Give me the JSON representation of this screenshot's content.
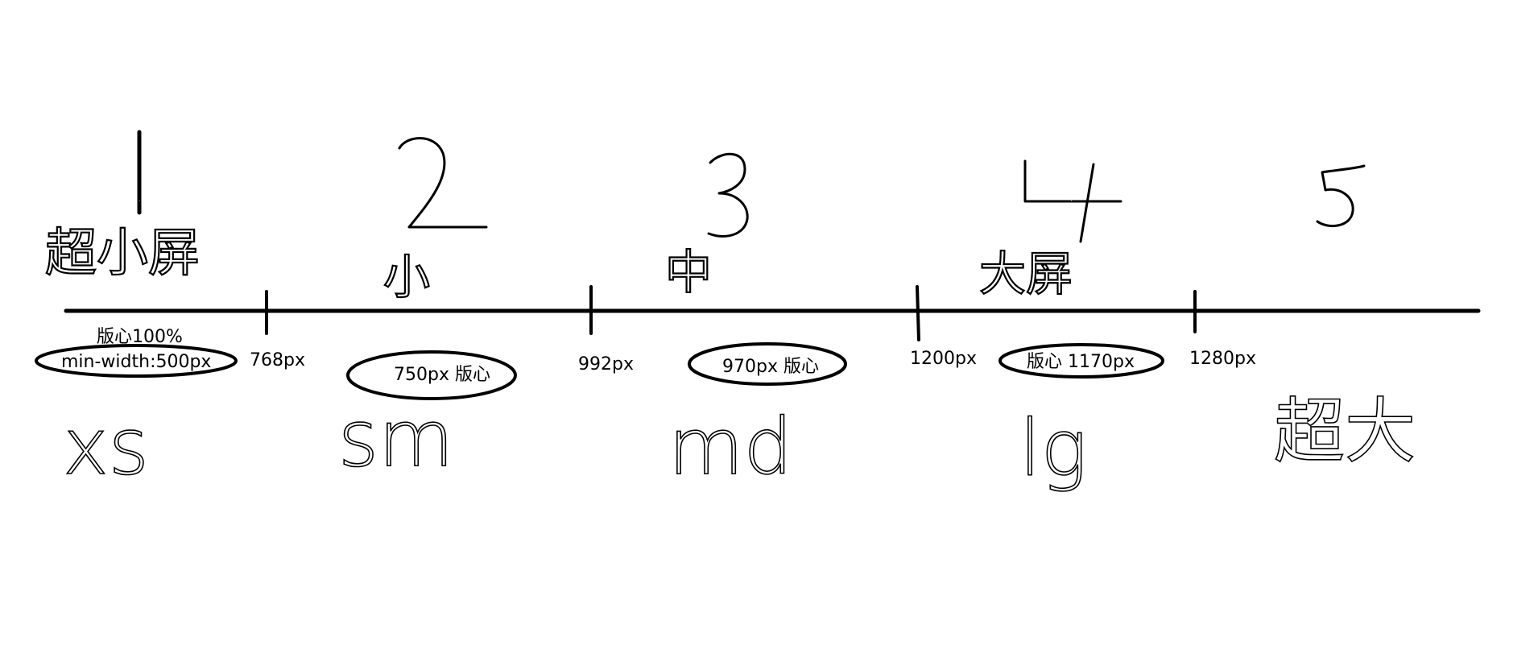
{
  "segments": [
    {
      "number": "1",
      "size_name": "超小屏",
      "note_lines": [
        "版心100%",
        "min-width:500px"
      ],
      "code": "xs"
    },
    {
      "number": "2",
      "size_name": "小",
      "note_lines": [
        "750px  版心"
      ],
      "code": "sm"
    },
    {
      "number": "3",
      "size_name": "中",
      "note_lines": [
        "970px  版心"
      ],
      "code": "md"
    },
    {
      "number": "4",
      "size_name": "大屏",
      "note_lines": [
        "版心 1170px"
      ],
      "code": "lg"
    },
    {
      "number": "5",
      "size_name": "",
      "note_lines": [],
      "code": "超大"
    }
  ],
  "breakpoints": [
    "768px",
    "992px",
    "1200px",
    "1280px"
  ]
}
